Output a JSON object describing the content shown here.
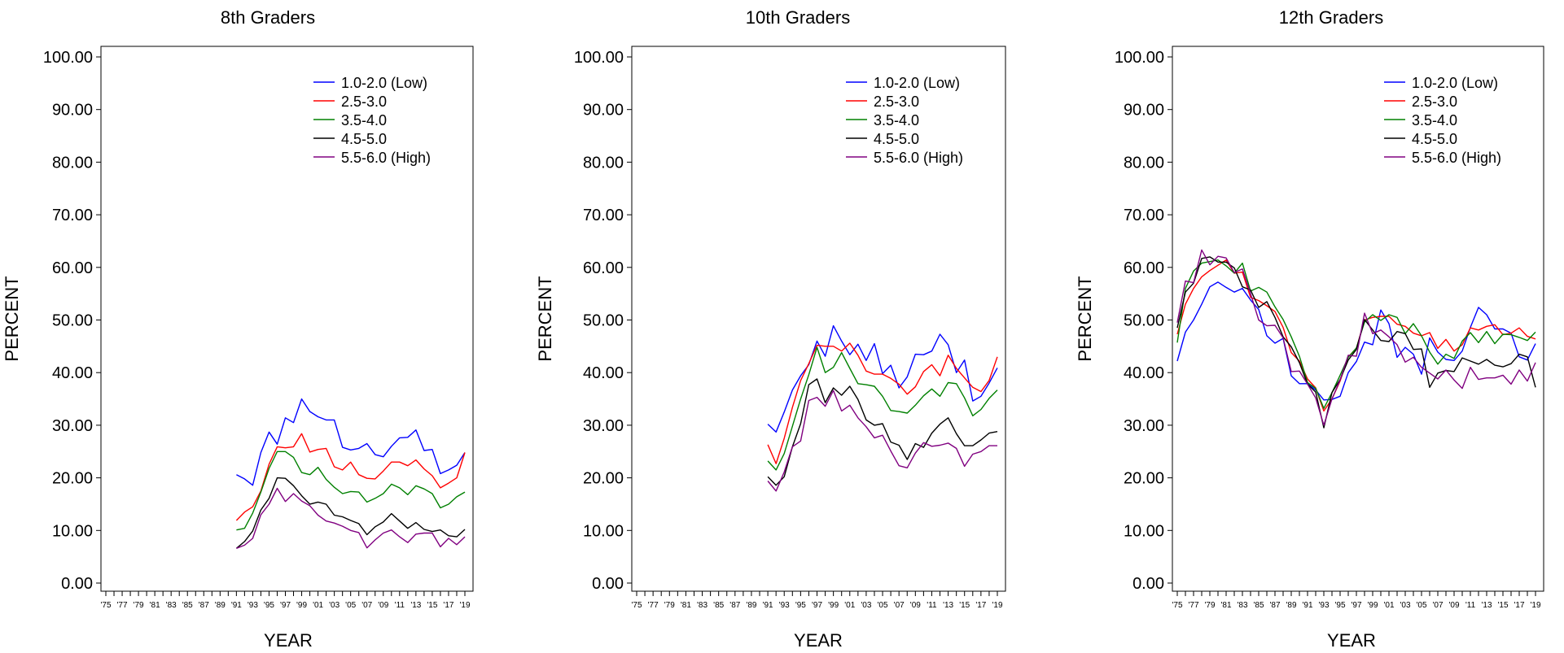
{
  "chart_data": [
    {
      "type": "line",
      "title": "8th Graders",
      "xlabel": "YEAR",
      "ylabel": "PERCENT",
      "ylim": [
        0,
        100
      ],
      "xlim": [
        1975,
        2019
      ],
      "y_ticks": [
        "0.00",
        "10.00",
        "20.00",
        "30.00",
        "40.00",
        "50.00",
        "60.00",
        "70.00",
        "80.00",
        "90.00",
        "100.00"
      ],
      "x_ticks": [
        "'75",
        "'77",
        "'79",
        "'81",
        "'83",
        "'85",
        "'87",
        "'89",
        "'91",
        "'93",
        "'95",
        "'97",
        "'99",
        "'01",
        "'03",
        "'05",
        "'07",
        "'09",
        "'11",
        "'13",
        "'15",
        "'17",
        "'19"
      ],
      "legend_position": "top-right",
      "x": [
        1991,
        1992,
        1993,
        1994,
        1995,
        1996,
        1997,
        1998,
        1999,
        2000,
        2001,
        2002,
        2003,
        2004,
        2005,
        2006,
        2007,
        2008,
        2009,
        2010,
        2011,
        2012,
        2013,
        2014,
        2015,
        2016,
        2017,
        2018,
        2019
      ],
      "series": [
        {
          "name": "1.0-2.0 (Low)",
          "color": "#0000ff",
          "values": [
            20.6,
            19.8,
            18.6,
            24.8,
            28.7,
            26.4,
            31.4,
            30.5,
            35.0,
            32.6,
            31.6,
            31.0,
            31.0,
            25.8,
            25.3,
            25.6,
            26.5,
            24.4,
            24.0,
            26.0,
            27.6,
            27.7,
            29.1,
            25.2,
            25.4,
            20.8,
            21.5,
            22.4,
            24.8
          ]
        },
        {
          "name": "2.5-3.0",
          "color": "#ff0000",
          "values": [
            11.9,
            13.5,
            14.5,
            17.5,
            22.6,
            25.9,
            25.7,
            25.9,
            28.4,
            24.9,
            25.4,
            25.6,
            22.1,
            21.5,
            23.0,
            20.6,
            19.9,
            19.8,
            21.3,
            23.0,
            23.0,
            22.3,
            23.4,
            21.7,
            20.4,
            18.1,
            19.0,
            20.0,
            24.8
          ]
        },
        {
          "name": "3.5-4.0",
          "color": "#008000",
          "values": [
            10.1,
            10.4,
            13.3,
            17.3,
            21.8,
            25.0,
            25.0,
            23.9,
            21.0,
            20.6,
            22.0,
            19.7,
            18.2,
            17.0,
            17.4,
            17.3,
            15.4,
            16.1,
            17.0,
            18.8,
            18.1,
            16.8,
            18.5,
            17.9,
            17.0,
            14.3,
            15.0,
            16.4,
            17.3
          ]
        },
        {
          "name": "4.5-5.0",
          "color": "#000000",
          "values": [
            6.6,
            7.9,
            9.9,
            13.9,
            16.1,
            20.0,
            19.9,
            18.5,
            16.6,
            15.0,
            15.4,
            15.0,
            12.9,
            12.6,
            11.9,
            11.3,
            9.2,
            10.7,
            11.6,
            13.2,
            11.8,
            10.4,
            11.5,
            10.2,
            9.8,
            10.1,
            9.0,
            8.8,
            10.2
          ]
        },
        {
          "name": "5.5-6.0 (High)",
          "color": "#800080",
          "values": [
            6.6,
            7.2,
            8.5,
            13.0,
            15.0,
            18.0,
            15.5,
            17.0,
            15.6,
            14.7,
            12.9,
            11.8,
            11.4,
            10.8,
            10.0,
            9.6,
            6.7,
            8.2,
            9.5,
            10.1,
            8.8,
            7.7,
            9.3,
            9.5,
            9.5,
            6.9,
            8.5,
            7.3,
            8.8
          ]
        }
      ]
    },
    {
      "type": "line",
      "title": "10th Graders",
      "xlabel": "YEAR",
      "ylabel": "PERCENT",
      "ylim": [
        0,
        100
      ],
      "xlim": [
        1975,
        2019
      ],
      "y_ticks": [
        "0.00",
        "10.00",
        "20.00",
        "30.00",
        "40.00",
        "50.00",
        "60.00",
        "70.00",
        "80.00",
        "90.00",
        "100.00"
      ],
      "x_ticks": [
        "'75",
        "'77",
        "'79",
        "'81",
        "'83",
        "'85",
        "'87",
        "'89",
        "'91",
        "'93",
        "'95",
        "'97",
        "'99",
        "'01",
        "'03",
        "'05",
        "'07",
        "'09",
        "'11",
        "'13",
        "'15",
        "'17",
        "'19"
      ],
      "legend_position": "top-right",
      "x": [
        1991,
        1992,
        1993,
        1994,
        1995,
        1996,
        1997,
        1998,
        1999,
        2000,
        2001,
        2002,
        2003,
        2004,
        2005,
        2006,
        2007,
        2008,
        2009,
        2010,
        2011,
        2012,
        2013,
        2014,
        2015,
        2016,
        2017,
        2018,
        2019
      ],
      "series": [
        {
          "name": "1.0-2.0 (Low)",
          "color": "#0000ff",
          "values": [
            30.2,
            28.7,
            32.5,
            36.7,
            39.4,
            41.5,
            46.0,
            43.1,
            48.9,
            46.0,
            43.4,
            45.4,
            42.3,
            45.5,
            39.8,
            41.4,
            37.1,
            39.2,
            43.5,
            43.4,
            44.1,
            47.3,
            45.3,
            40.0,
            42.4,
            34.6,
            35.5,
            38.0,
            40.9
          ]
        },
        {
          "name": "2.5-3.0",
          "color": "#ff0000",
          "values": [
            26.3,
            22.7,
            27.5,
            33.4,
            38.5,
            41.7,
            45.2,
            45.0,
            45.0,
            44.1,
            45.6,
            43.3,
            40.3,
            39.7,
            39.7,
            38.9,
            37.8,
            35.9,
            37.3,
            40.2,
            41.5,
            39.4,
            43.3,
            40.8,
            39.0,
            37.2,
            36.4,
            38.5,
            43.0
          ]
        },
        {
          "name": "3.5-4.0",
          "color": "#008000",
          "values": [
            23.2,
            21.5,
            24.6,
            29.8,
            35.0,
            39.6,
            44.8,
            40.0,
            41.0,
            43.8,
            40.8,
            37.9,
            37.7,
            37.4,
            35.5,
            32.8,
            32.6,
            32.3,
            33.8,
            35.6,
            36.9,
            35.5,
            38.1,
            37.9,
            35.2,
            31.8,
            33.0,
            35.1,
            36.7
          ]
        },
        {
          "name": "4.5-5.0",
          "color": "#000000",
          "values": [
            20.2,
            18.6,
            20.2,
            25.9,
            30.3,
            37.7,
            38.8,
            34.3,
            37.1,
            35.7,
            37.4,
            34.9,
            31.0,
            30.0,
            30.3,
            26.8,
            26.2,
            23.5,
            26.5,
            25.8,
            28.5,
            30.2,
            31.4,
            28.4,
            26.1,
            26.1,
            27.2,
            28.5,
            28.8
          ]
        },
        {
          "name": "5.5-6.0 (High)",
          "color": "#800080",
          "values": [
            19.4,
            17.5,
            21.1,
            25.9,
            27.0,
            34.7,
            35.3,
            33.6,
            36.6,
            32.7,
            33.8,
            31.4,
            29.7,
            27.6,
            28.1,
            25.1,
            22.3,
            21.9,
            24.7,
            26.7,
            26.0,
            26.2,
            26.6,
            25.6,
            22.2,
            24.5,
            25.0,
            26.1,
            26.1
          ]
        }
      ]
    },
    {
      "type": "line",
      "title": "12th Graders",
      "xlabel": "YEAR",
      "ylabel": "PERCENT",
      "ylim": [
        0,
        100
      ],
      "xlim": [
        1975,
        2019
      ],
      "y_ticks": [
        "0.00",
        "10.00",
        "20.00",
        "30.00",
        "40.00",
        "50.00",
        "60.00",
        "70.00",
        "80.00",
        "90.00",
        "100.00"
      ],
      "x_ticks": [
        "'75",
        "'77",
        "'79",
        "'81",
        "'83",
        "'85",
        "'87",
        "'89",
        "'91",
        "'93",
        "'95",
        "'97",
        "'99",
        "'01",
        "'03",
        "'05",
        "'07",
        "'09",
        "'11",
        "'13",
        "'15",
        "'17",
        "'19"
      ],
      "legend_position": "top-right",
      "x": [
        1975,
        1976,
        1977,
        1978,
        1979,
        1980,
        1981,
        1982,
        1983,
        1984,
        1985,
        1986,
        1987,
        1988,
        1989,
        1990,
        1991,
        1992,
        1993,
        1994,
        1995,
        1996,
        1997,
        1998,
        1999,
        2000,
        2001,
        2002,
        2003,
        2004,
        2005,
        2006,
        2007,
        2008,
        2009,
        2010,
        2011,
        2012,
        2013,
        2014,
        2015,
        2016,
        2017,
        2018,
        2019
      ],
      "series": [
        {
          "name": "1.0-2.0 (Low)",
          "color": "#0000ff",
          "values": [
            42.2,
            47.7,
            50.0,
            53.0,
            56.3,
            57.2,
            56.2,
            55.3,
            56.0,
            53.8,
            52.0,
            47.0,
            45.6,
            46.5,
            39.4,
            37.9,
            37.9,
            36.7,
            34.8,
            34.9,
            35.5,
            40.0,
            42.1,
            45.8,
            45.3,
            51.9,
            49.3,
            42.9,
            44.8,
            43.5,
            39.7,
            46.6,
            43.9,
            42.5,
            42.3,
            44.1,
            48.6,
            52.4,
            51.0,
            48.3,
            48.3,
            47.5,
            43.0,
            42.4,
            45.5
          ]
        },
        {
          "name": "2.5-3.0",
          "color": "#ff0000",
          "values": [
            47.3,
            53.0,
            56.0,
            58.2,
            59.4,
            60.4,
            61.4,
            58.9,
            59.1,
            54.3,
            53.7,
            52.7,
            51.6,
            48.6,
            43.8,
            42.2,
            38.8,
            37.1,
            32.7,
            35.0,
            38.4,
            43.0,
            44.6,
            50.0,
            50.5,
            50.7,
            50.7,
            49.2,
            48.8,
            47.5,
            47.0,
            47.6,
            44.6,
            46.3,
            44.1,
            45.3,
            48.5,
            48.1,
            48.8,
            49.1,
            47.2,
            47.5,
            48.5,
            46.9,
            46.4
          ]
        },
        {
          "name": "3.5-4.0",
          "color": "#008000",
          "values": [
            45.7,
            56.0,
            59.3,
            60.8,
            61.1,
            61.4,
            60.3,
            58.9,
            60.8,
            55.5,
            56.2,
            55.3,
            52.5,
            50.1,
            46.8,
            43.1,
            38.1,
            37.0,
            33.2,
            36.2,
            39.5,
            42.9,
            44.7,
            49.6,
            51.0,
            49.9,
            51.0,
            50.5,
            47.4,
            49.3,
            47.0,
            43.9,
            41.6,
            43.5,
            42.7,
            46.0,
            47.6,
            45.7,
            47.8,
            45.5,
            47.3,
            47.2,
            46.7,
            46.1,
            47.7
          ]
        },
        {
          "name": "4.5-5.0",
          "color": "#000000",
          "values": [
            48.5,
            55.3,
            57.0,
            61.7,
            62.0,
            61.0,
            61.0,
            59.9,
            56.3,
            55.7,
            52.4,
            53.5,
            50.5,
            46.8,
            44.9,
            41.9,
            37.8,
            36.3,
            29.5,
            36.2,
            38.7,
            42.4,
            44.4,
            50.1,
            48.1,
            46.1,
            45.9,
            47.8,
            47.4,
            44.4,
            44.5,
            37.2,
            39.9,
            40.4,
            40.2,
            42.8,
            42.2,
            41.6,
            42.5,
            41.4,
            41.1,
            41.7,
            43.5,
            43.0,
            37.2
          ]
        },
        {
          "name": "5.5-6.0 (High)",
          "color": "#800080",
          "values": [
            49.5,
            57.4,
            57.1,
            63.3,
            60.5,
            62.1,
            61.8,
            59.0,
            59.7,
            55.0,
            50.0,
            48.9,
            49.0,
            46.6,
            40.2,
            40.3,
            37.8,
            35.2,
            30.0,
            35.0,
            38.6,
            43.3,
            43.1,
            51.3,
            47.4,
            48.1,
            46.8,
            45.3,
            42.0,
            42.9,
            41.0,
            39.9,
            38.8,
            40.5,
            38.6,
            37.0,
            41.0,
            38.7,
            39.0,
            39.0,
            39.5,
            37.8,
            40.5,
            38.4,
            41.9
          ]
        }
      ]
    }
  ]
}
